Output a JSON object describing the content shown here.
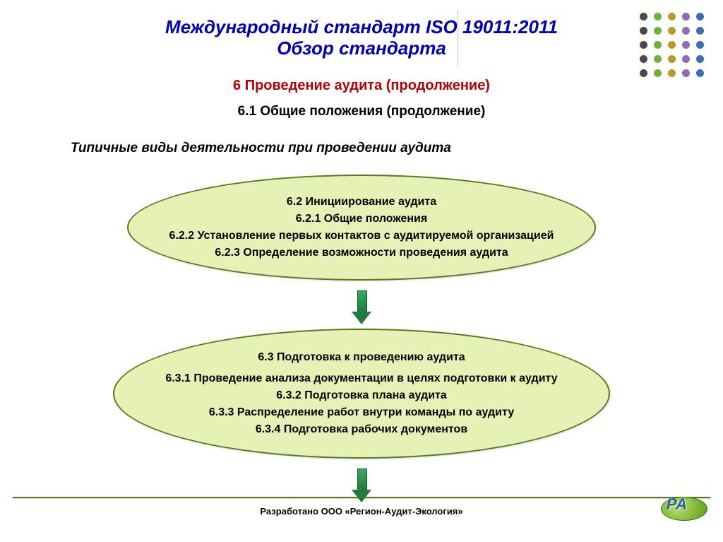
{
  "title": {
    "line1": "Международный стандарт ISO 19011:2011",
    "line2": "Обзор стандарта",
    "color": "#0000b3",
    "fontsize": 26
  },
  "section": {
    "label": "6  Проведение аудита (продолжение)",
    "color": "#b40000",
    "fontsize": 20
  },
  "subsection": {
    "label": "6.1 Общие положения (продолжение)",
    "fontsize": 19
  },
  "activities_header": "Типичные виды деятельности при проведении аудита",
  "ellipse1": {
    "fill": "#e6f2b5",
    "border": "#5a7a1a",
    "lines": [
      "6.2 Инициирование аудита",
      "6.2.1 Общие положения",
      "6.2.2 Установление первых контактов с аудитируемой организацией",
      "6.2.3 Определение возможности проведения аудита"
    ]
  },
  "ellipse2": {
    "fill": "#e6f2b5",
    "border": "#5a7a1a",
    "lines": [
      "6.3 Подготовка к проведению аудита",
      "6.3.1 Проведение анализа документации в целях подготовки к аудиту",
      "6.3.2 Подготовка плана аудита",
      "6.3.3 Распределение работ внутри команды по аудиту",
      "6.3.4 Подготовка рабочих документов"
    ]
  },
  "arrow_color": "#1f7a3e",
  "credit": "Разработано ООО «Регион-Аудит-Экология»",
  "dot_decoration": {
    "grid": 5,
    "spacing": 20,
    "dot_size": 11,
    "palette": [
      "#4a4a4a",
      "#6db23a",
      "#b59b28",
      "#8a6fb3",
      "#3a6fb3"
    ]
  },
  "background_color": "#ffffff",
  "footer_line_color": "#5a7a1a",
  "logo_text": "РА"
}
